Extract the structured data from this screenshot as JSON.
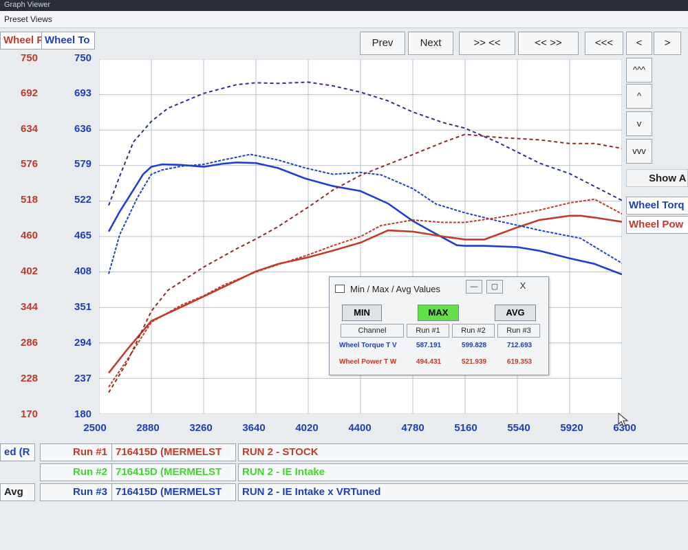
{
  "window": {
    "title": "Graph Viewer",
    "subtitle": "Preset Views"
  },
  "channel_tabs": [
    "Wheel Po",
    "Wheel To"
  ],
  "nav_buttons": [
    "Prev",
    "Next",
    ">> <<",
    "<< >>",
    "<<<",
    "<",
    ">"
  ],
  "scroll_buttons": [
    "^^^",
    "^",
    "v",
    "vvv"
  ],
  "side_panel": {
    "show_label": "Show A",
    "channels": [
      "Wheel Torq",
      "Wheel Pow"
    ]
  },
  "colors": {
    "power": "#c23a2a",
    "torque": "#1f3fd0",
    "grid": "#b9c0c8",
    "plot_bg": "#ffffff"
  },
  "chart_data": {
    "type": "line",
    "x_ticks": [
      "2500",
      "2880",
      "3260",
      "3640",
      "4020",
      "4400",
      "4780",
      "5160",
      "5540",
      "5920",
      "6300"
    ],
    "xlim": [
      2500,
      6300
    ],
    "y_left_ticks": [
      "750",
      "692",
      "634",
      "576",
      "518",
      "460",
      "402",
      "344",
      "286",
      "228",
      "170"
    ],
    "y_left_lim": [
      170,
      750
    ],
    "y_right_ticks": [
      "750",
      "693",
      "636",
      "579",
      "522",
      "465",
      "408",
      "351",
      "294",
      "237",
      "180"
    ],
    "y_right_lim": [
      180,
      750
    ],
    "grid": true,
    "series": [
      {
        "name": "Wheel Torque T V",
        "run": "Run #1",
        "axis": "right",
        "color": "#1f3fd0",
        "style": "solid",
        "x": [
          2570,
          2650,
          2750,
          2820,
          2880,
          2960,
          3100,
          3260,
          3400,
          3500,
          3640,
          3800,
          4000,
          4200,
          4400,
          4600,
          4780,
          4900,
          5000,
          5100,
          5160,
          5300,
          5540,
          5700,
          5920,
          6100,
          6300
        ],
        "y": [
          473,
          505,
          540,
          565,
          577,
          581,
          580,
          577,
          582,
          584,
          583,
          575,
          558,
          546,
          538,
          518,
          490,
          475,
          463,
          451,
          450,
          450,
          448,
          442,
          430,
          421,
          404
        ]
      },
      {
        "name": "Wheel Power T W",
        "run": "Run #1",
        "axis": "left",
        "color": "#c23a2a",
        "style": "solid",
        "x": [
          2570,
          2700,
          2880,
          3100,
          3260,
          3400,
          3640,
          3800,
          4020,
          4200,
          4400,
          4600,
          4780,
          5000,
          5160,
          5300,
          5540,
          5700,
          5920,
          6000,
          6100,
          6300
        ],
        "y": [
          237,
          274,
          322,
          345,
          362,
          377,
          403,
          415,
          426,
          437,
          450,
          470,
          468,
          460,
          455,
          455,
          475,
          487,
          494,
          494,
          491,
          484
        ]
      },
      {
        "name": "Wheel Torque T V",
        "run": "Run #2",
        "axis": "right",
        "color": "#1f3fd0",
        "style": "dashed-short",
        "x": [
          2570,
          2650,
          2780,
          2880,
          2960,
          3100,
          3260,
          3400,
          3600,
          3800,
          4000,
          4200,
          4400,
          4550,
          4780,
          4950,
          5160,
          5400,
          5700,
          6000,
          6300
        ],
        "y": [
          405,
          468,
          528,
          565,
          572,
          578,
          581,
          588,
          597,
          588,
          575,
          565,
          568,
          564,
          542,
          517,
          503,
          490,
          475,
          462,
          422
        ]
      },
      {
        "name": "Wheel Power T W",
        "run": "Run #2",
        "axis": "left",
        "color": "#c23a2a",
        "style": "dashed-short",
        "x": [
          2570,
          2700,
          2880,
          3100,
          3260,
          3400,
          3640,
          3800,
          4020,
          4200,
          4400,
          4550,
          4780,
          5000,
          5160,
          5400,
          5700,
          5920,
          6100,
          6300
        ],
        "y": [
          214,
          257,
          320,
          348,
          363,
          380,
          402,
          414,
          430,
          445,
          460,
          478,
          487,
          483,
          483,
          491,
          503,
          515,
          521,
          497
        ]
      },
      {
        "name": "Wheel Torque T V",
        "run": "Run #3",
        "axis": "right",
        "color": "#2a2f8c",
        "style": "dashed",
        "x": [
          2570,
          2650,
          2750,
          2880,
          3000,
          3260,
          3500,
          3640,
          3800,
          4020,
          4200,
          4400,
          4600,
          4780,
          5000,
          5160,
          5400,
          5700,
          5920,
          6300
        ],
        "y": [
          515,
          562,
          617,
          650,
          671,
          695,
          709,
          712,
          711,
          713,
          707,
          697,
          683,
          665,
          648,
          639,
          616,
          583,
          566,
          523
        ]
      },
      {
        "name": "Wheel Power T W",
        "run": "Run #3",
        "axis": "left",
        "color": "#8c2a22",
        "style": "dashed",
        "x": [
          2570,
          2700,
          2880,
          3000,
          3260,
          3500,
          3640,
          3800,
          4020,
          4200,
          4400,
          4600,
          4780,
          5000,
          5160,
          5400,
          5700,
          5920,
          6100,
          6300
        ],
        "y": [
          205,
          253,
          338,
          372,
          410,
          440,
          456,
          476,
          508,
          536,
          560,
          578,
          594,
          614,
          627,
          622,
          618,
          612,
          612,
          604
        ]
      }
    ]
  },
  "minmax_dialog": {
    "title": "Min / Max / Avg Values",
    "buttons": [
      "MIN",
      "MAX",
      "AVG"
    ],
    "headers": [
      "Channel",
      "Run #1",
      "Run #2",
      "Run #3"
    ],
    "rows": [
      {
        "channel": "Wheel Torque T V",
        "values": [
          "587.191",
          "599.828",
          "712.693"
        ]
      },
      {
        "channel": "Wheel Power T W",
        "values": [
          "494.431",
          "521.939",
          "619.353"
        ]
      }
    ],
    "ctl_labels": [
      "—",
      "▢",
      "X"
    ]
  },
  "bottom_rows": [
    {
      "left": "ed (R",
      "run": "Run #1",
      "file": "716415D (MERMELST",
      "desc": "RUN 2 - STOCK",
      "color": "#c23a2a"
    },
    {
      "left": "",
      "run": "Run #2",
      "file": "716415D (MERMELST",
      "desc": "RUN 2 - IE Intake",
      "color": "#41d62c"
    },
    {
      "left": "Avg",
      "run": "Run #3",
      "file": "716415D (MERMELST",
      "desc": "RUN 2 - IE Intake x VRTuned",
      "color": "#1e3fb8"
    }
  ]
}
